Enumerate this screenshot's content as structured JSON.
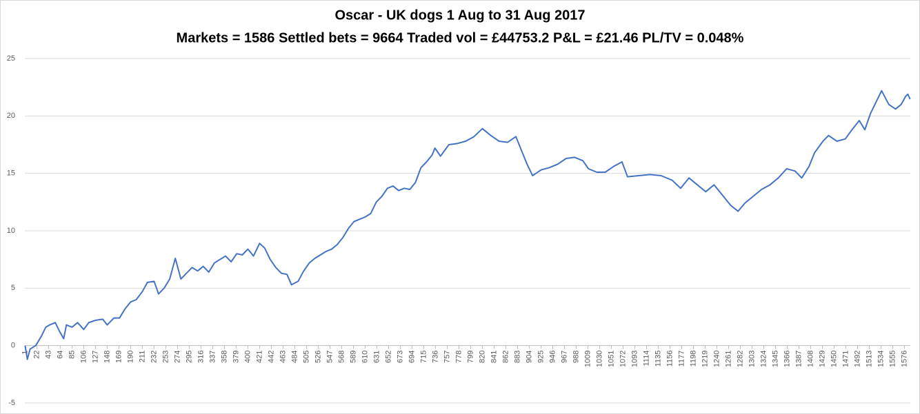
{
  "chart_data": {
    "type": "line",
    "title": "Oscar - UK dogs 1 Aug to 31 Aug 2017",
    "subtitle": "Markets = 1586  Settled bets = 9664  Traded vol = £44753.2  P&L = £21.46  PL/TV = 0.048%",
    "x": [
      1,
      5,
      10,
      20,
      30,
      38,
      45,
      55,
      62,
      70,
      75,
      85,
      95,
      106,
      115,
      127,
      140,
      148,
      160,
      170,
      180,
      190,
      200,
      211,
      220,
      232,
      240,
      250,
      260,
      270,
      280,
      290,
      300,
      310,
      320,
      330,
      340,
      350,
      360,
      370,
      380,
      390,
      400,
      410,
      421,
      430,
      440,
      450,
      460,
      470,
      478,
      490,
      500,
      510,
      520,
      530,
      540,
      550,
      560,
      570,
      580,
      590,
      600,
      610,
      620,
      630,
      640,
      650,
      660,
      670,
      680,
      690,
      700,
      710,
      720,
      730,
      735,
      745,
      760,
      775,
      790,
      805,
      820,
      835,
      850,
      865,
      880,
      890,
      900,
      910,
      925,
      940,
      955,
      970,
      985,
      1000,
      1010,
      1025,
      1040,
      1055,
      1070,
      1080,
      1100,
      1120,
      1140,
      1160,
      1175,
      1190,
      1205,
      1220,
      1235,
      1250,
      1265,
      1278,
      1290,
      1305,
      1320,
      1335,
      1350,
      1365,
      1380,
      1392,
      1405,
      1415,
      1430,
      1440,
      1455,
      1470,
      1482,
      1495,
      1505,
      1515,
      1525,
      1535,
      1548,
      1560,
      1570,
      1578,
      1582,
      1586
    ],
    "series": [
      {
        "color": "#4472c4",
        "values": [
          0,
          -1.2,
          -0.3,
          0,
          0.8,
          1.6,
          1.8,
          2.0,
          1.3,
          0.6,
          1.8,
          1.6,
          2.0,
          1.4,
          2.0,
          2.2,
          2.3,
          1.8,
          2.4,
          2.4,
          3.2,
          3.8,
          4.0,
          4.7,
          5.5,
          5.6,
          4.5,
          5.0,
          5.8,
          7.6,
          5.8,
          6.3,
          6.8,
          6.5,
          6.9,
          6.4,
          7.2,
          7.5,
          7.8,
          7.3,
          8.0,
          7.9,
          8.4,
          7.8,
          8.9,
          8.5,
          7.5,
          6.8,
          6.3,
          6.2,
          5.3,
          5.6,
          6.5,
          7.2,
          7.6,
          7.9,
          8.2,
          8.4,
          8.8,
          9.4,
          10.2,
          10.8,
          11.0,
          11.2,
          11.5,
          12.5,
          13.0,
          13.7,
          13.9,
          13.5,
          13.7,
          13.6,
          14.2,
          15.5,
          16.0,
          16.6,
          17.2,
          16.5,
          17.5,
          17.6,
          17.8,
          18.2,
          18.9,
          18.3,
          17.8,
          17.7,
          18.2,
          17.0,
          15.8,
          14.8,
          15.3,
          15.5,
          15.8,
          16.3,
          16.4,
          16.1,
          15.4,
          15.1,
          15.1,
          15.6,
          16.0,
          14.7,
          14.8,
          14.9,
          14.8,
          14.4,
          13.7,
          14.6,
          14.0,
          13.4,
          14.0,
          13.1,
          12.2,
          11.7,
          12.4,
          13.0,
          13.6,
          14.0,
          14.6,
          15.4,
          15.2,
          14.6,
          15.6,
          16.8,
          17.8,
          18.3,
          17.8,
          18.0,
          18.8,
          19.6,
          18.8,
          20.2,
          21.2,
          22.2,
          21.0,
          20.6,
          21.0,
          21.7,
          21.9,
          21.46
        ]
      }
    ],
    "xlim": [
      0.5,
      1586.5
    ],
    "xticks": [
      1,
      22,
      43,
      64,
      85,
      106,
      127,
      148,
      169,
      190,
      211,
      232,
      253,
      274,
      295,
      316,
      337,
      358,
      379,
      400,
      421,
      442,
      463,
      484,
      505,
      526,
      547,
      568,
      589,
      610,
      631,
      652,
      673,
      694,
      715,
      736,
      757,
      778,
      799,
      820,
      841,
      862,
      883,
      904,
      925,
      946,
      967,
      988,
      1009,
      1030,
      1051,
      1072,
      1093,
      1114,
      1135,
      1156,
      1177,
      1198,
      1219,
      1240,
      1261,
      1282,
      1303,
      1324,
      1345,
      1366,
      1387,
      1408,
      1429,
      1450,
      1471,
      1492,
      1513,
      1534,
      1555,
      1576
    ],
    "ylim": [
      -5,
      25
    ],
    "yticks": [
      -5,
      0,
      5,
      10,
      15,
      20,
      25
    ],
    "grid": true
  }
}
